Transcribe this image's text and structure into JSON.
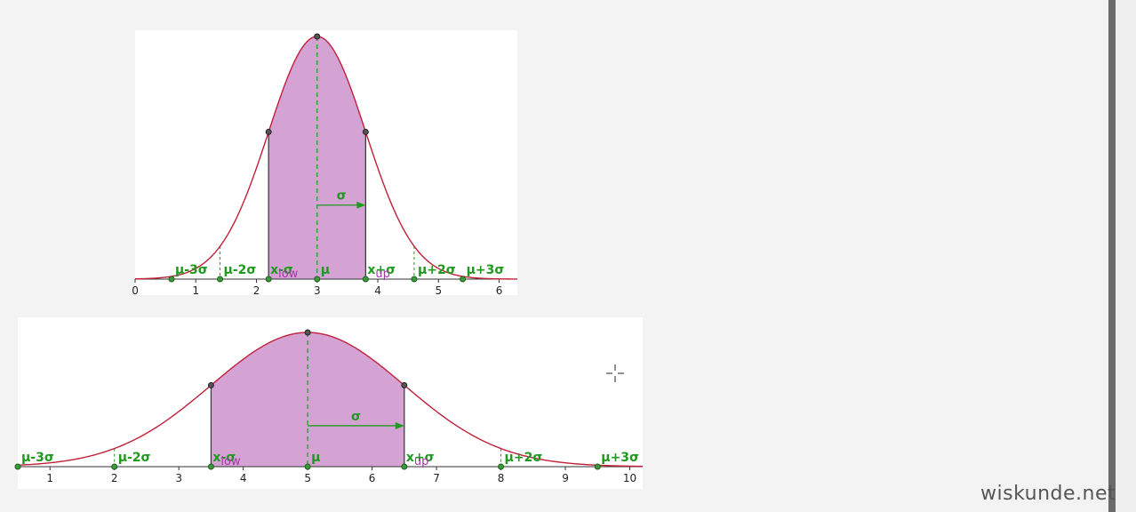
{
  "chart_data": [
    {
      "type": "area",
      "mu": 3,
      "sigma": 0.8,
      "xlim": [
        0,
        6.3
      ],
      "x_ticks": [
        "0",
        "1",
        "2",
        "3",
        "4",
        "5",
        "6"
      ],
      "shaded_interval": [
        2.2,
        3.8
      ],
      "markers": [
        {
          "label": "μ-3σ",
          "sub": "",
          "k": -3
        },
        {
          "label": "μ-2σ",
          "sub": "",
          "k": -2
        },
        {
          "label": "x",
          "sub": "low",
          "extra": "-σ",
          "k": -1
        },
        {
          "label": "μ",
          "sub": "",
          "k": 0
        },
        {
          "label": "x",
          "sub": "up",
          "extra": "+σ",
          "k": 1
        },
        {
          "label": "μ+2σ",
          "sub": "",
          "k": 2
        },
        {
          "label": "μ+3σ",
          "sub": "",
          "k": 3
        }
      ],
      "sigma_label": "σ"
    },
    {
      "type": "area",
      "mu": 5,
      "sigma": 1.5,
      "xlim": [
        0.5,
        10.2
      ],
      "x_ticks": [
        "1",
        "2",
        "3",
        "4",
        "5",
        "6",
        "7",
        "8",
        "9",
        "10"
      ],
      "shaded_interval": [
        3.5,
        6.5
      ],
      "markers": [
        {
          "label": "μ-3σ",
          "sub": "",
          "k": -3
        },
        {
          "label": "μ-2σ",
          "sub": "",
          "k": -2
        },
        {
          "label": "x",
          "sub": "low",
          "extra": "-σ",
          "k": -1
        },
        {
          "label": "μ",
          "sub": "",
          "k": 0
        },
        {
          "label": "x",
          "sub": "up",
          "extra": "+σ",
          "k": 1
        },
        {
          "label": "μ+2σ",
          "sub": "",
          "k": 2
        },
        {
          "label": "μ+3σ",
          "sub": "",
          "k": 3
        }
      ],
      "sigma_label": "σ"
    }
  ],
  "colors": {
    "curve": "#c0203a",
    "fill": "#d4a3d4",
    "green": "#1f9a1f",
    "sub": "#a437a4"
  },
  "watermark": "wiskunde.net"
}
